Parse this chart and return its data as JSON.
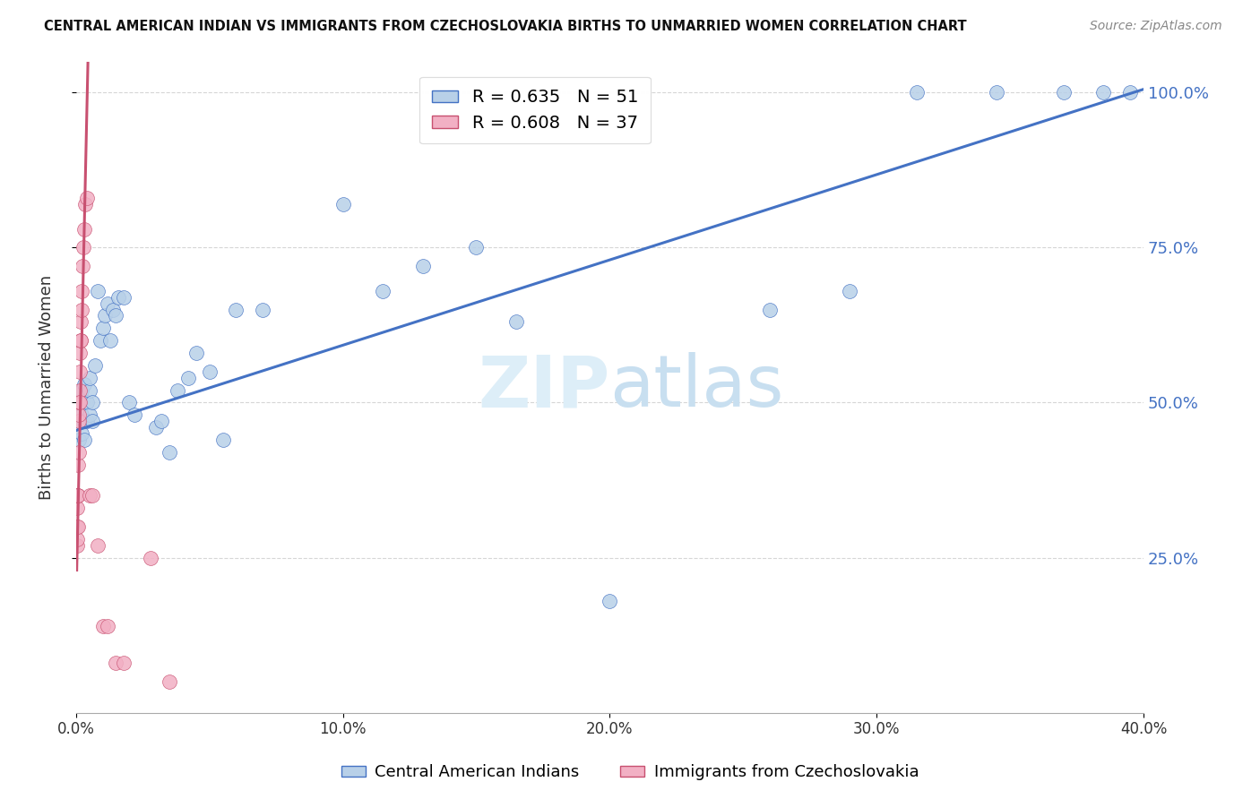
{
  "title": "CENTRAL AMERICAN INDIAN VS IMMIGRANTS FROM CZECHOSLOVAKIA BIRTHS TO UNMARRIED WOMEN CORRELATION CHART",
  "source": "Source: ZipAtlas.com",
  "ylabel": "Births to Unmarried Women",
  "xlabel_blue": "Central American Indians",
  "xlabel_pink": "Immigrants from Czechoslovakia",
  "R_blue": 0.635,
  "N_blue": 51,
  "R_pink": 0.608,
  "N_pink": 37,
  "color_blue": "#b8d0e8",
  "color_pink": "#f2b0c4",
  "line_blue": "#4472c4",
  "line_pink": "#c85070",
  "watermark_color": "#ddeef8",
  "xlim": [
    0.0,
    0.4
  ],
  "ylim": [
    0.0,
    1.05
  ],
  "ytick_vals": [
    0.25,
    0.5,
    0.75,
    1.0
  ],
  "ytick_labels": [
    "25.0%",
    "50.0%",
    "75.0%",
    "100.0%"
  ],
  "xtick_vals": [
    0.0,
    0.1,
    0.2,
    0.3,
    0.4
  ],
  "xtick_labels": [
    "0.0%",
    "10.0%",
    "20.0%",
    "30.0%",
    "40.0%"
  ],
  "blue_x": [
    0.001,
    0.001,
    0.002,
    0.002,
    0.002,
    0.003,
    0.003,
    0.003,
    0.004,
    0.004,
    0.005,
    0.005,
    0.005,
    0.006,
    0.006,
    0.007,
    0.008,
    0.009,
    0.01,
    0.011,
    0.012,
    0.013,
    0.014,
    0.015,
    0.016,
    0.018,
    0.02,
    0.022,
    0.03,
    0.032,
    0.035,
    0.038,
    0.042,
    0.045,
    0.05,
    0.055,
    0.06,
    0.07,
    0.1,
    0.115,
    0.13,
    0.15,
    0.165,
    0.2,
    0.26,
    0.29,
    0.315,
    0.345,
    0.37,
    0.385,
    0.395
  ],
  "blue_y": [
    0.44,
    0.47,
    0.45,
    0.48,
    0.52,
    0.44,
    0.47,
    0.53,
    0.47,
    0.5,
    0.48,
    0.52,
    0.54,
    0.47,
    0.5,
    0.56,
    0.68,
    0.6,
    0.62,
    0.64,
    0.66,
    0.6,
    0.65,
    0.64,
    0.67,
    0.67,
    0.5,
    0.48,
    0.46,
    0.47,
    0.42,
    0.52,
    0.54,
    0.58,
    0.55,
    0.44,
    0.65,
    0.65,
    0.82,
    0.68,
    0.72,
    0.75,
    0.63,
    0.18,
    0.65,
    0.68,
    1.0,
    1.0,
    1.0,
    1.0,
    1.0
  ],
  "pink_x": [
    0.0003,
    0.0003,
    0.0004,
    0.0004,
    0.0005,
    0.0005,
    0.0006,
    0.0007,
    0.0008,
    0.0009,
    0.001,
    0.001,
    0.0011,
    0.0012,
    0.0013,
    0.0014,
    0.0015,
    0.0016,
    0.0017,
    0.0018,
    0.0019,
    0.002,
    0.0022,
    0.0025,
    0.0028,
    0.003,
    0.0035,
    0.004,
    0.005,
    0.006,
    0.008,
    0.01,
    0.012,
    0.015,
    0.018,
    0.028,
    0.035
  ],
  "pink_y": [
    0.3,
    0.35,
    0.27,
    0.33,
    0.28,
    0.35,
    0.3,
    0.35,
    0.4,
    0.35,
    0.42,
    0.47,
    0.48,
    0.5,
    0.52,
    0.5,
    0.55,
    0.58,
    0.6,
    0.6,
    0.63,
    0.65,
    0.68,
    0.72,
    0.75,
    0.78,
    0.82,
    0.83,
    0.35,
    0.35,
    0.27,
    0.14,
    0.14,
    0.08,
    0.08,
    0.25,
    0.05
  ],
  "blue_line_x": [
    0.0,
    0.4
  ],
  "blue_line_y": [
    0.455,
    1.005
  ],
  "pink_line_x": [
    0.0003,
    0.0045
  ],
  "pink_line_y": [
    0.23,
    1.05
  ]
}
